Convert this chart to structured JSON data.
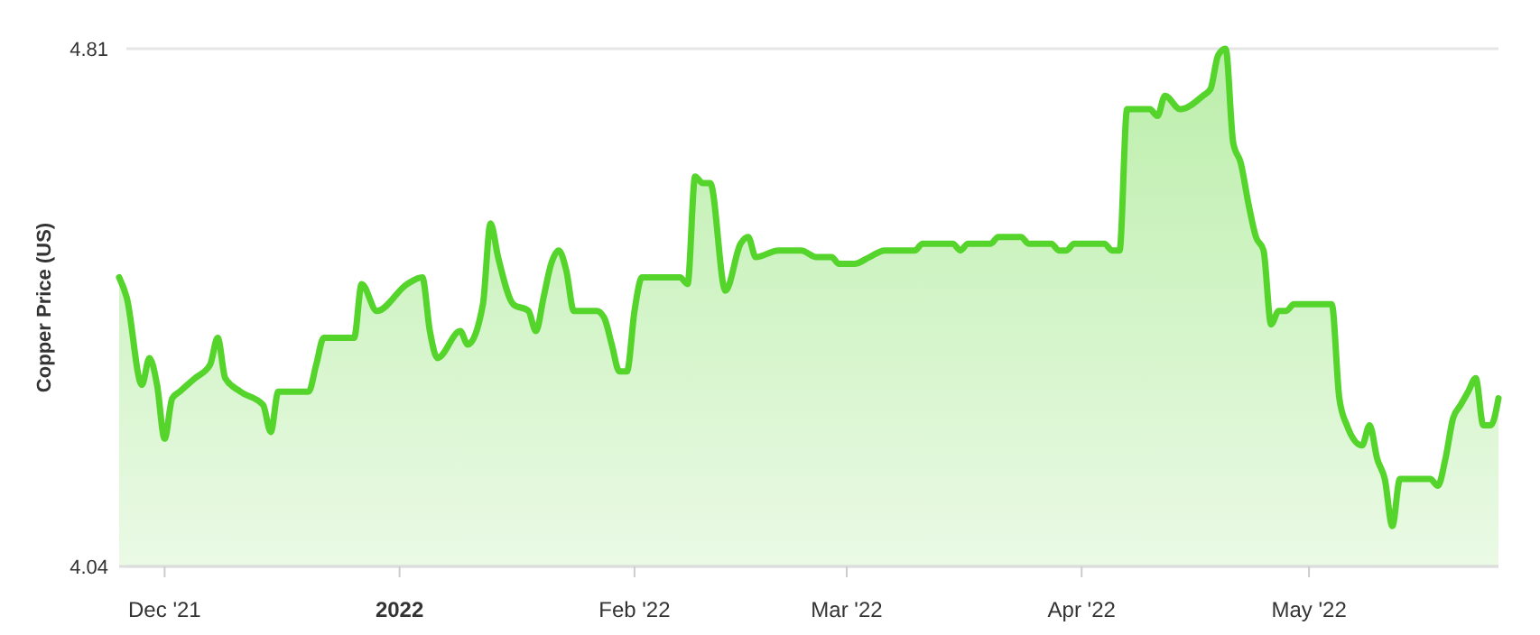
{
  "chart_data": {
    "type": "area",
    "ylabel": "Copper Price (US)",
    "xlim": [
      "2021-11-25",
      "2022-05-26"
    ],
    "ylim": [
      4.04,
      4.81
    ],
    "yticks": [
      4.04,
      4.81
    ],
    "xticks": [
      {
        "value": "2021-12-01",
        "label": "Dec '21"
      },
      {
        "value": "2022-01-01",
        "label": "2022"
      },
      {
        "value": "2022-02-01",
        "label": "Feb '22"
      },
      {
        "value": "2022-03-01",
        "label": "Mar '22"
      },
      {
        "value": "2022-04-01",
        "label": "Apr '22"
      },
      {
        "value": "2022-05-01",
        "label": "May '22"
      }
    ],
    "grid": "y",
    "marker": "none",
    "line_style": "solid",
    "x": [
      "2021-11-25",
      "2021-11-26",
      "2021-11-28",
      "2021-11-29",
      "2021-11-30",
      "2021-12-01",
      "2021-12-02",
      "2021-12-03",
      "2021-12-05",
      "2021-12-07",
      "2021-12-08",
      "2021-12-09",
      "2021-12-11",
      "2021-12-14",
      "2021-12-15",
      "2021-12-16",
      "2021-12-20",
      "2021-12-21",
      "2021-12-22",
      "2021-12-26",
      "2021-12-27",
      "2021-12-29",
      "2022-01-02",
      "2022-01-04",
      "2022-01-05",
      "2022-01-06",
      "2022-01-09",
      "2022-01-10",
      "2022-01-12",
      "2022-01-13",
      "2022-01-14",
      "2022-01-16",
      "2022-01-18",
      "2022-01-19",
      "2022-01-20",
      "2022-01-21",
      "2022-01-22",
      "2022-01-23",
      "2022-01-24",
      "2022-01-27",
      "2022-01-28",
      "2022-01-29",
      "2022-01-30",
      "2022-01-31",
      "2022-02-01",
      "2022-02-02",
      "2022-02-07",
      "2022-02-08",
      "2022-02-09",
      "2022-02-10",
      "2022-02-11",
      "2022-02-13",
      "2022-02-15",
      "2022-02-16",
      "2022-02-17",
      "2022-02-20",
      "2022-02-23",
      "2022-02-25",
      "2022-02-27",
      "2022-02-28",
      "2022-03-02",
      "2022-03-04",
      "2022-03-06",
      "2022-03-10",
      "2022-03-11",
      "2022-03-15",
      "2022-03-16",
      "2022-03-17",
      "2022-03-20",
      "2022-03-21",
      "2022-03-24",
      "2022-03-25",
      "2022-03-28",
      "2022-03-29",
      "2022-03-30",
      "2022-03-31",
      "2022-04-04",
      "2022-04-05",
      "2022-04-06",
      "2022-04-07",
      "2022-04-08",
      "2022-04-10",
      "2022-04-11",
      "2022-04-12",
      "2022-04-14",
      "2022-04-17",
      "2022-04-18",
      "2022-04-19",
      "2022-04-20",
      "2022-04-21",
      "2022-04-22",
      "2022-04-23",
      "2022-04-24",
      "2022-04-25",
      "2022-04-26",
      "2022-04-27",
      "2022-04-28",
      "2022-04-29",
      "2022-05-04",
      "2022-05-05",
      "2022-05-06",
      "2022-05-08",
      "2022-05-09",
      "2022-05-10",
      "2022-05-11",
      "2022-05-12",
      "2022-05-13",
      "2022-05-17",
      "2022-05-18",
      "2022-05-19",
      "2022-05-20",
      "2022-05-21",
      "2022-05-22",
      "2022-05-23",
      "2022-05-24",
      "2022-05-25",
      "2022-05-26"
    ],
    "series": [
      {
        "color": "#55d52b",
        "values": [
          4.47,
          4.44,
          4.31,
          4.35,
          4.31,
          4.23,
          4.29,
          4.3,
          4.32,
          4.34,
          4.38,
          4.32,
          4.3,
          4.28,
          4.24,
          4.3,
          4.3,
          4.34,
          4.38,
          4.38,
          4.46,
          4.42,
          4.46,
          4.47,
          4.39,
          4.35,
          4.39,
          4.37,
          4.43,
          4.55,
          4.5,
          4.43,
          4.42,
          4.39,
          4.44,
          4.49,
          4.51,
          4.48,
          4.42,
          4.42,
          4.41,
          4.37,
          4.33,
          4.33,
          4.42,
          4.47,
          4.47,
          4.46,
          4.62,
          4.61,
          4.61,
          4.45,
          4.52,
          4.53,
          4.5,
          4.51,
          4.51,
          4.5,
          4.5,
          4.49,
          4.49,
          4.5,
          4.51,
          4.51,
          4.52,
          4.52,
          4.51,
          4.52,
          4.52,
          4.53,
          4.53,
          4.52,
          4.52,
          4.51,
          4.51,
          4.52,
          4.52,
          4.51,
          4.51,
          4.72,
          4.72,
          4.72,
          4.71,
          4.74,
          4.72,
          4.74,
          4.75,
          4.8,
          4.81,
          4.67,
          4.64,
          4.58,
          4.53,
          4.51,
          4.4,
          4.42,
          4.42,
          4.43,
          4.43,
          4.29,
          4.25,
          4.22,
          4.25,
          4.2,
          4.17,
          4.1,
          4.17,
          4.17,
          4.16,
          4.2,
          4.26,
          4.28,
          4.3,
          4.32,
          4.25,
          4.25,
          4.29
        ]
      }
    ]
  }
}
